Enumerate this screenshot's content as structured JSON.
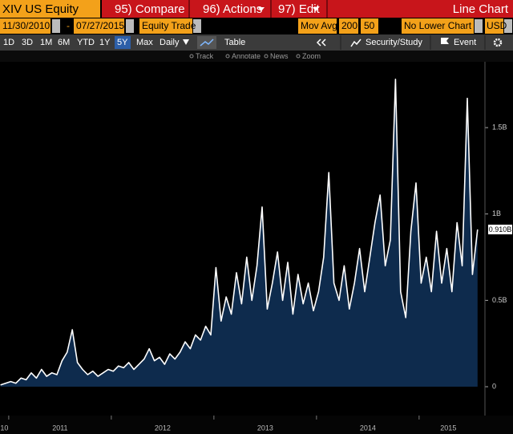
{
  "toolbar": {
    "ticker": "XIV US Equity",
    "menus": [
      "95) Compare",
      "96) Actions",
      "97) Edit"
    ],
    "view": "Line Chart"
  },
  "fields": {
    "start": "11/30/2010",
    "dash": "-",
    "end": "07/27/2015",
    "source": "Equity Trade",
    "mov_avg_label": "Mov Avg",
    "mov_avg_1": "200",
    "mov_avg_2": "50",
    "lower_chart": "No Lower Chart",
    "currency": "USD"
  },
  "periods": [
    "1D",
    "3D",
    "1M",
    "6M",
    "YTD",
    "1Y",
    "5Y",
    "Max"
  ],
  "selected_period": "5Y",
  "frequency": "Daily",
  "buttons": {
    "table": "Table",
    "security_study": "Security/Study",
    "event": "Event"
  },
  "tools": [
    "Track",
    "Annotate",
    "News",
    "Zoom"
  ],
  "chart_data": {
    "type": "line",
    "x": [
      2010.92,
      2010.97,
      2011.02,
      2011.07,
      2011.12,
      2011.17,
      2011.22,
      2011.27,
      2011.32,
      2011.37,
      2011.42,
      2011.47,
      2011.52,
      2011.57,
      2011.62,
      2011.67,
      2011.72,
      2011.77,
      2011.82,
      2011.87,
      2011.92,
      2011.97,
      2012.02,
      2012.07,
      2012.12,
      2012.17,
      2012.22,
      2012.27,
      2012.32,
      2012.37,
      2012.42,
      2012.47,
      2012.52,
      2012.57,
      2012.62,
      2012.67,
      2012.72,
      2012.77,
      2012.82,
      2012.87,
      2012.92,
      2012.97,
      2013.02,
      2013.07,
      2013.12,
      2013.17,
      2013.22,
      2013.27,
      2013.32,
      2013.37,
      2013.42,
      2013.47,
      2013.52,
      2013.57,
      2013.62,
      2013.67,
      2013.72,
      2013.77,
      2013.82,
      2013.87,
      2013.92,
      2013.97,
      2014.02,
      2014.07,
      2014.12,
      2014.17,
      2014.22,
      2014.27,
      2014.32,
      2014.37,
      2014.42,
      2014.47,
      2014.52,
      2014.57,
      2014.62,
      2014.67,
      2014.72,
      2014.77,
      2014.82,
      2014.87,
      2014.92,
      2014.97,
      2015.02,
      2015.07,
      2015.12,
      2015.17,
      2015.22,
      2015.27,
      2015.32,
      2015.37,
      2015.42,
      2015.47,
      2015.52,
      2015.57
    ],
    "series": [
      {
        "color": "#ffffff",
        "area_color": "#0e2b4d",
        "values": [
          0.01,
          0.02,
          0.03,
          0.02,
          0.05,
          0.04,
          0.08,
          0.05,
          0.1,
          0.06,
          0.08,
          0.07,
          0.15,
          0.2,
          0.33,
          0.14,
          0.1,
          0.07,
          0.09,
          0.06,
          0.08,
          0.1,
          0.09,
          0.12,
          0.11,
          0.14,
          0.1,
          0.13,
          0.16,
          0.22,
          0.15,
          0.17,
          0.13,
          0.19,
          0.16,
          0.2,
          0.26,
          0.22,
          0.3,
          0.27,
          0.35,
          0.3,
          0.69,
          0.38,
          0.52,
          0.42,
          0.66,
          0.48,
          0.75,
          0.5,
          0.7,
          1.04,
          0.45,
          0.6,
          0.78,
          0.5,
          0.72,
          0.42,
          0.65,
          0.48,
          0.6,
          0.44,
          0.55,
          0.75,
          1.24,
          0.6,
          0.5,
          0.7,
          0.45,
          0.6,
          0.8,
          0.55,
          0.75,
          0.95,
          1.11,
          0.7,
          0.85,
          1.78,
          0.55,
          0.4,
          0.9,
          1.18,
          0.6,
          0.75,
          0.55,
          0.9,
          0.6,
          0.8,
          0.55,
          0.95,
          0.7,
          1.67,
          0.65,
          0.91
        ]
      }
    ],
    "last_label": {
      "value": 0.91,
      "label": "0.910B"
    },
    "xlim": [
      2010.915,
      2015.57
    ],
    "xticks": [
      {
        "value": 2010,
        "label": "10"
      },
      2011,
      2012,
      2013,
      2014,
      2015
    ],
    "ylim": [
      -0.167,
      1.937
    ],
    "yticks": [
      0,
      {
        "value": 0.5,
        "label": "0.5B"
      },
      {
        "value": 1,
        "label": "1B"
      },
      {
        "value": 1.5,
        "label": "1.5B"
      }
    ],
    "grid": false
  }
}
